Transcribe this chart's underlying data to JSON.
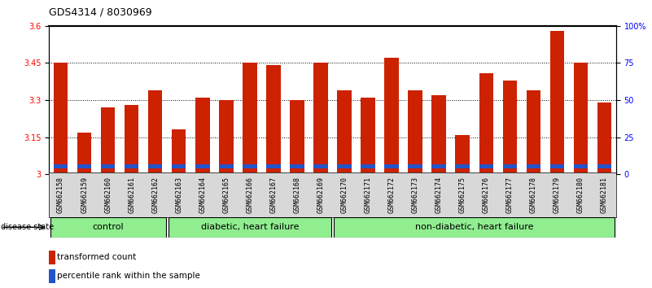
{
  "title": "GDS4314 / 8030969",
  "samples": [
    "GSM662158",
    "GSM662159",
    "GSM662160",
    "GSM662161",
    "GSM662162",
    "GSM662163",
    "GSM662164",
    "GSM662165",
    "GSM662166",
    "GSM662167",
    "GSM662168",
    "GSM662169",
    "GSM662170",
    "GSM662171",
    "GSM662172",
    "GSM662173",
    "GSM662174",
    "GSM662175",
    "GSM662176",
    "GSM662177",
    "GSM662178",
    "GSM662179",
    "GSM662180",
    "GSM662181"
  ],
  "red_values": [
    3.45,
    3.17,
    3.27,
    3.28,
    3.34,
    3.18,
    3.31,
    3.3,
    3.45,
    3.44,
    3.3,
    3.45,
    3.34,
    3.31,
    3.47,
    3.34,
    3.32,
    3.16,
    3.41,
    3.38,
    3.34,
    3.58,
    3.45,
    3.29
  ],
  "blue_heights": [
    0.018,
    0.018,
    0.018,
    0.018,
    0.018,
    0.018,
    0.018,
    0.018,
    0.018,
    0.018,
    0.018,
    0.018,
    0.018,
    0.018,
    0.018,
    0.018,
    0.018,
    0.018,
    0.018,
    0.018,
    0.018,
    0.018,
    0.018,
    0.018
  ],
  "group_starts": [
    0,
    5,
    12
  ],
  "group_ends": [
    4,
    11,
    23
  ],
  "group_labels": [
    "control",
    "diabetic, heart failure",
    "non-diabetic, heart failure"
  ],
  "group_color": "#90ee90",
  "ylim_left": [
    3.0,
    3.6
  ],
  "ylim_right": [
    0,
    100
  ],
  "yticks_left": [
    3.0,
    3.15,
    3.3,
    3.45,
    3.6
  ],
  "yticks_right": [
    0,
    25,
    50,
    75,
    100
  ],
  "ytick_labels_left": [
    "3",
    "3.15",
    "3.3",
    "3.45",
    "3.6"
  ],
  "ytick_labels_right": [
    "0",
    "25",
    "50",
    "75",
    "100%"
  ],
  "hlines": [
    3.15,
    3.3,
    3.45
  ],
  "bar_color": "#cc2200",
  "blue_color": "#2255cc",
  "bar_bottom": 3.0,
  "bar_width": 0.6,
  "title_fontsize": 9,
  "tick_fontsize": 7,
  "sample_fontsize": 6,
  "group_fontsize": 8,
  "legend_fontsize": 7.5
}
